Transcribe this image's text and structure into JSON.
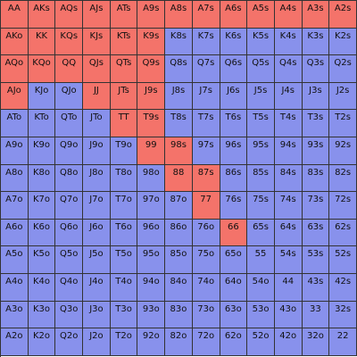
{
  "colors": {
    "in_range": "#f4736a",
    "out_of_range": "#8891ec",
    "grid_line": "#333333"
  },
  "grid": {
    "rows": [
      [
        "AA",
        "AKs",
        "AQs",
        "AJs",
        "ATs",
        "A9s",
        "A8s",
        "A7s",
        "A6s",
        "A5s",
        "A4s",
        "A3s",
        "A2s"
      ],
      [
        "AKo",
        "KK",
        "KQs",
        "KJs",
        "KTs",
        "K9s",
        "K8s",
        "K7s",
        "K6s",
        "K5s",
        "K4s",
        "K3s",
        "K2s"
      ],
      [
        "AQo",
        "KQo",
        "QQ",
        "QJs",
        "QTs",
        "Q9s",
        "Q8s",
        "Q7s",
        "Q6s",
        "Q5s",
        "Q4s",
        "Q3s",
        "Q2s"
      ],
      [
        "AJo",
        "KJo",
        "QJo",
        "JJ",
        "JTs",
        "J9s",
        "J8s",
        "J7s",
        "J6s",
        "J5s",
        "J4s",
        "J3s",
        "J2s"
      ],
      [
        "ATo",
        "KTo",
        "QTo",
        "JTo",
        "TT",
        "T9s",
        "T8s",
        "T7s",
        "T6s",
        "T5s",
        "T4s",
        "T3s",
        "T2s"
      ],
      [
        "A9o",
        "K9o",
        "Q9o",
        "J9o",
        "T9o",
        "99",
        "98s",
        "97s",
        "96s",
        "95s",
        "94s",
        "93s",
        "92s"
      ],
      [
        "A8o",
        "K8o",
        "Q8o",
        "J8o",
        "T8o",
        "98o",
        "88",
        "87s",
        "86s",
        "85s",
        "84s",
        "83s",
        "82s"
      ],
      [
        "A7o",
        "K7o",
        "Q7o",
        "J7o",
        "T7o",
        "97o",
        "87o",
        "77",
        "76s",
        "75s",
        "74s",
        "73s",
        "72s"
      ],
      [
        "A6o",
        "K6o",
        "Q6o",
        "J6o",
        "T6o",
        "96o",
        "86o",
        "76o",
        "66",
        "65s",
        "64s",
        "63s",
        "62s"
      ],
      [
        "A5o",
        "K5o",
        "Q5o",
        "J5o",
        "T5o",
        "95o",
        "85o",
        "75o",
        "65o",
        "55",
        "54s",
        "53s",
        "52s"
      ],
      [
        "A4o",
        "K4o",
        "Q4o",
        "J4o",
        "T4o",
        "94o",
        "84o",
        "74o",
        "64o",
        "54o",
        "44",
        "43s",
        "42s"
      ],
      [
        "A3o",
        "K3o",
        "Q3o",
        "J3o",
        "T3o",
        "93o",
        "83o",
        "73o",
        "63o",
        "53o",
        "43o",
        "33",
        "32s"
      ],
      [
        "A2o",
        "K2o",
        "Q2o",
        "J2o",
        "T2o",
        "92o",
        "82o",
        "72o",
        "62o",
        "52o",
        "42o",
        "32o",
        "22"
      ]
    ],
    "selected": [
      [
        1,
        1,
        1,
        1,
        1,
        1,
        1,
        1,
        1,
        1,
        1,
        1,
        1
      ],
      [
        1,
        1,
        1,
        1,
        1,
        1,
        0,
        0,
        0,
        0,
        0,
        0,
        0
      ],
      [
        1,
        1,
        1,
        1,
        1,
        1,
        0,
        0,
        0,
        0,
        0,
        0,
        0
      ],
      [
        1,
        0,
        0,
        1,
        1,
        1,
        0,
        0,
        0,
        0,
        0,
        0,
        0
      ],
      [
        0,
        0,
        0,
        0,
        1,
        1,
        0,
        0,
        0,
        0,
        0,
        0,
        0
      ],
      [
        0,
        0,
        0,
        0,
        0,
        1,
        1,
        0,
        0,
        0,
        0,
        0,
        0
      ],
      [
        0,
        0,
        0,
        0,
        0,
        0,
        1,
        1,
        0,
        0,
        0,
        0,
        0
      ],
      [
        0,
        0,
        0,
        0,
        0,
        0,
        0,
        1,
        0,
        0,
        0,
        0,
        0
      ],
      [
        0,
        0,
        0,
        0,
        0,
        0,
        0,
        0,
        1,
        0,
        0,
        0,
        0
      ],
      [
        0,
        0,
        0,
        0,
        0,
        0,
        0,
        0,
        0,
        0,
        0,
        0,
        0
      ],
      [
        0,
        0,
        0,
        0,
        0,
        0,
        0,
        0,
        0,
        0,
        0,
        0,
        0
      ],
      [
        0,
        0,
        0,
        0,
        0,
        0,
        0,
        0,
        0,
        0,
        0,
        0,
        0
      ],
      [
        0,
        0,
        0,
        0,
        0,
        0,
        0,
        0,
        0,
        0,
        0,
        0,
        0
      ]
    ]
  }
}
